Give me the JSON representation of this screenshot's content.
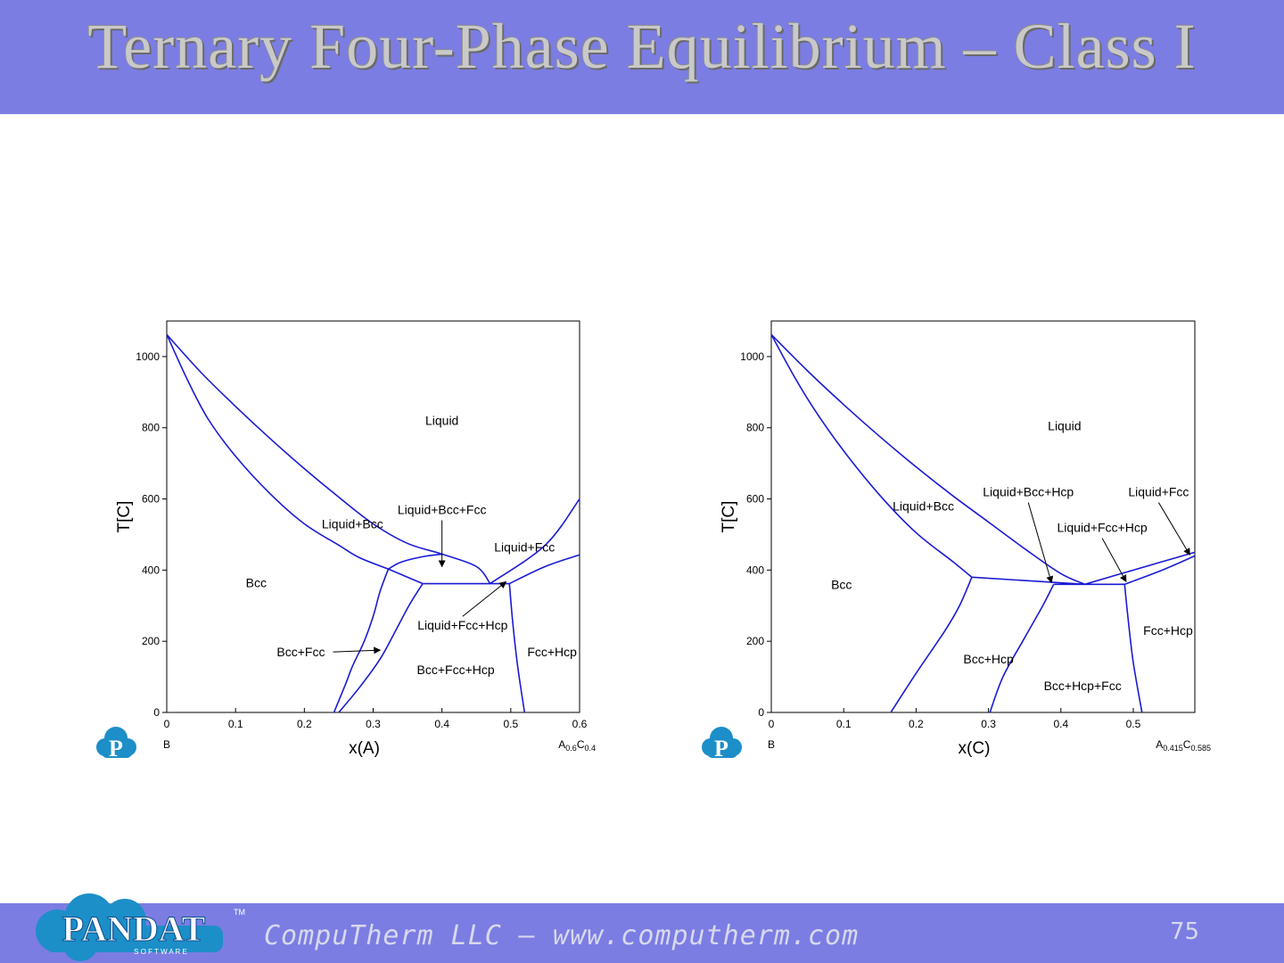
{
  "header": {
    "title": "Ternary Four-Phase Equilibrium – Class I",
    "background_color": "#7b7de3",
    "title_color": "#c9c9c9"
  },
  "footer": {
    "text": "CompuTherm LLC – www.computherm.com",
    "page_number": "75",
    "logo": {
      "text": "PANDAT",
      "subtext": "S O F T W A R E",
      "tm": "TM"
    }
  },
  "chart_data": [
    {
      "type": "line",
      "xlabel": "x(A)",
      "ylabel": "T[C]",
      "xlim": [
        0,
        0.6
      ],
      "ylim": [
        0,
        1100
      ],
      "x_ticks": [
        "0",
        "0.1",
        "0.2",
        "0.3",
        "0.4",
        "0.5",
        "0.6"
      ],
      "y_ticks": [
        "0",
        "200",
        "400",
        "600",
        "800",
        "1000"
      ],
      "left_end_label": "B",
      "right_end_label": {
        "base": "A",
        "sub1": "0.6",
        "mid": "C",
        "sub2": "0.4"
      },
      "line_color": "#1a1ad6",
      "series": [
        {
          "values": [
            [
              0,
              1062
            ],
            [
              0.05,
              955
            ],
            [
              0.1,
              860
            ],
            [
              0.15,
              770
            ],
            [
              0.2,
              685
            ],
            [
              0.25,
              605
            ],
            [
              0.3,
              530
            ],
            [
              0.35,
              475
            ],
            [
              0.4,
              445
            ],
            [
              0.45,
              410
            ],
            [
              0.47,
              362
            ]
          ]
        },
        {
          "values": [
            [
              0,
              1062
            ],
            [
              0.03,
              935
            ],
            [
              0.06,
              825
            ],
            [
              0.1,
              720
            ],
            [
              0.15,
              615
            ],
            [
              0.2,
              530
            ],
            [
              0.25,
              470
            ],
            [
              0.28,
              435
            ],
            [
              0.322,
              403
            ]
          ]
        },
        {
          "values": [
            [
              0.322,
              403
            ],
            [
              0.34,
              422
            ],
            [
              0.37,
              437
            ],
            [
              0.4,
              445
            ]
          ]
        },
        {
          "values": [
            [
              0.322,
              403
            ],
            [
              0.31,
              340
            ],
            [
              0.3,
              270
            ],
            [
              0.287,
              200
            ],
            [
              0.27,
              130
            ],
            [
              0.26,
              80
            ],
            [
              0.243,
              0
            ]
          ]
        },
        {
          "values": [
            [
              0.322,
              403
            ],
            [
              0.372,
              362
            ]
          ]
        },
        {
          "values": [
            [
              0.372,
              362
            ],
            [
              0.352,
              300
            ],
            [
              0.33,
              220
            ],
            [
              0.31,
              150
            ],
            [
              0.28,
              70
            ],
            [
              0.25,
              0
            ]
          ]
        },
        {
          "values": [
            [
              0.372,
              362
            ],
            [
              0.498,
              362
            ]
          ]
        },
        {
          "values": [
            [
              0.47,
              362
            ],
            [
              0.55,
              470
            ],
            [
              0.6,
              600
            ]
          ]
        },
        {
          "values": [
            [
              0.498,
              362
            ],
            [
              0.55,
              410
            ],
            [
              0.6,
              443
            ]
          ]
        },
        {
          "values": [
            [
              0.498,
              362
            ],
            [
              0.503,
              250
            ],
            [
              0.51,
              130
            ],
            [
              0.52,
              0
            ]
          ]
        }
      ],
      "annotations": [
        {
          "text": "Liquid",
          "x": 0.4,
          "y": 820
        },
        {
          "text": "Liquid+Bcc",
          "x": 0.27,
          "y": 530
        },
        {
          "text": "Liquid+Bcc+Fcc",
          "x": 0.4,
          "y": 570,
          "arrow_to": [
            0.4,
            410
          ]
        },
        {
          "text": "Liquid+Fcc",
          "x": 0.52,
          "y": 465
        },
        {
          "text": "Bcc",
          "x": 0.13,
          "y": 365
        },
        {
          "text": "Liquid+Fcc+Hcp",
          "x": 0.43,
          "y": 245,
          "arrow_to": [
            0.493,
            367
          ]
        },
        {
          "text": "Bcc+Fcc",
          "x": 0.195,
          "y": 170,
          "arrow_to": [
            0.31,
            175
          ]
        },
        {
          "text": "Bcc+Fcc+Hcp",
          "x": 0.42,
          "y": 120
        },
        {
          "text": "Fcc+Hcp",
          "x": 0.56,
          "y": 170
        }
      ]
    },
    {
      "type": "line",
      "xlabel": "x(C)",
      "ylabel": "T[C]",
      "xlim": [
        0,
        0.585
      ],
      "ylim": [
        0,
        1100
      ],
      "x_ticks": [
        "0",
        "0.1",
        "0.2",
        "0.3",
        "0.4",
        "0.5"
      ],
      "y_ticks": [
        "0",
        "200",
        "400",
        "600",
        "800",
        "1000"
      ],
      "left_end_label": "B",
      "right_end_label": {
        "base": "A",
        "sub1": "0.415",
        "mid": "C",
        "sub2": "0.585"
      },
      "line_color": "#1a1ad6",
      "series": [
        {
          "values": [
            [
              0,
              1062
            ],
            [
              0.05,
              960
            ],
            [
              0.1,
              865
            ],
            [
              0.15,
              775
            ],
            [
              0.2,
              690
            ],
            [
              0.25,
              610
            ],
            [
              0.3,
              535
            ],
            [
              0.35,
              460
            ],
            [
              0.4,
              390
            ],
            [
              0.433,
              360
            ]
          ]
        },
        {
          "values": [
            [
              0,
              1062
            ],
            [
              0.03,
              950
            ],
            [
              0.06,
              850
            ],
            [
              0.1,
              735
            ],
            [
              0.15,
              610
            ],
            [
              0.2,
              505
            ],
            [
              0.25,
              425
            ],
            [
              0.277,
              380
            ]
          ]
        },
        {
          "values": [
            [
              0.277,
              380
            ],
            [
              0.433,
              360
            ]
          ]
        },
        {
          "values": [
            [
              0.277,
              380
            ],
            [
              0.26,
              300
            ],
            [
              0.24,
              230
            ],
            [
              0.2,
              110
            ],
            [
              0.165,
              0
            ]
          ]
        },
        {
          "values": [
            [
              0.39,
              360
            ],
            [
              0.375,
              300
            ],
            [
              0.35,
              210
            ],
            [
              0.32,
              100
            ],
            [
              0.302,
              0
            ]
          ]
        },
        {
          "values": [
            [
              0.39,
              360
            ],
            [
              0.488,
              360
            ]
          ]
        },
        {
          "values": [
            [
              0.433,
              360
            ],
            [
              0.5,
              400
            ],
            [
              0.585,
              450
            ]
          ]
        },
        {
          "values": [
            [
              0.488,
              360
            ],
            [
              0.54,
              400
            ],
            [
              0.585,
              440
            ]
          ]
        },
        {
          "values": [
            [
              0.488,
              360
            ],
            [
              0.493,
              260
            ],
            [
              0.5,
              140
            ],
            [
              0.512,
              0
            ]
          ]
        }
      ],
      "annotations": [
        {
          "text": "Liquid",
          "x": 0.405,
          "y": 805
        },
        {
          "text": "Liquid+Bcc",
          "x": 0.21,
          "y": 580
        },
        {
          "text": "Liquid+Bcc+Hcp",
          "x": 0.355,
          "y": 620,
          "arrow_to": [
            0.387,
            365
          ]
        },
        {
          "text": "Liquid+Fcc",
          "x": 0.535,
          "y": 620,
          "arrow_to": [
            0.578,
            443
          ]
        },
        {
          "text": "Liquid+Fcc+Hcp",
          "x": 0.457,
          "y": 520,
          "arrow_to": [
            0.49,
            368
          ]
        },
        {
          "text": "Bcc",
          "x": 0.097,
          "y": 360
        },
        {
          "text": "Bcc+Hcp",
          "x": 0.3,
          "y": 150
        },
        {
          "text": "Bcc+Hcp+Fcc",
          "x": 0.43,
          "y": 75
        },
        {
          "text": "Fcc+Hcp",
          "x": 0.548,
          "y": 230
        }
      ]
    }
  ]
}
